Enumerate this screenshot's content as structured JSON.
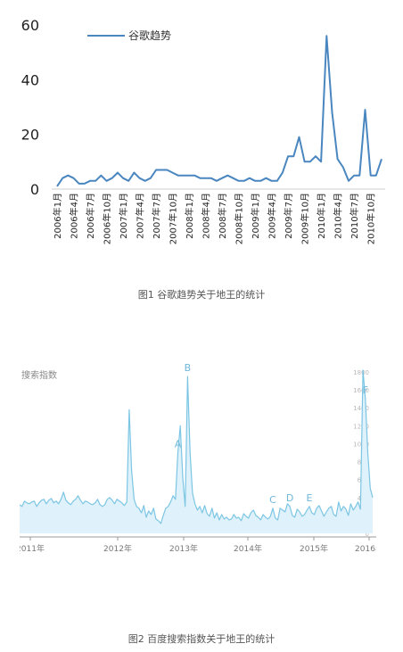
{
  "figure1": {
    "caption": "图1 谷歌趋势关于地王的统计",
    "legend": "谷歌趋势",
    "line_color": "#4a86bf"
  },
  "figure2": {
    "caption": "图2 百度搜索指数关于地王的统计",
    "line_color": "#7cc6e4",
    "fill_color": "#dff1fa"
  },
  "chart_data": [
    {
      "type": "line",
      "title": "",
      "xlabel": "",
      "ylabel": "",
      "ylim": [
        0,
        60
      ],
      "yticks": [
        0,
        20,
        40,
        60
      ],
      "grid": false,
      "legend_position": "top-left",
      "x_tick_labels": [
        "2006年1月",
        "2006年4月",
        "2006年7月",
        "2006年10月",
        "2007年1月",
        "2007年4月",
        "2007年7月",
        "2007年10月",
        "2008年1月",
        "2008年4月",
        "2008年7月",
        "2008年10月",
        "2009年1月",
        "2009年4月",
        "2009年7月",
        "2009年10月",
        "2010年1月",
        "2010年4月",
        "2010年7月",
        "2010年10月"
      ],
      "series": [
        {
          "name": "谷歌趋势",
          "values": [
            1,
            4,
            5,
            4,
            2,
            2,
            3,
            3,
            5,
            3,
            4,
            6,
            4,
            3,
            6,
            4,
            3,
            4,
            7,
            7,
            7,
            6,
            5,
            5,
            5,
            5,
            4,
            4,
            4,
            3,
            4,
            5,
            4,
            3,
            3,
            4,
            3,
            3,
            4,
            3,
            3,
            6,
            12,
            12,
            19,
            10,
            10,
            12,
            10,
            56,
            28,
            11,
            8,
            3,
            5,
            5,
            29,
            5,
            5,
            11
          ]
        }
      ]
    },
    {
      "type": "area",
      "title": "搜索指数",
      "x_tick_labels": [
        "2011年",
        "2012年",
        "2013年",
        "2014年",
        "2015年",
        "2016年"
      ],
      "y_tick_labels": [
        "0",
        "200",
        "400",
        "600",
        "800",
        "1000",
        "1200",
        "1400",
        "1600",
        "1800"
      ],
      "annotations": [
        "A",
        "B",
        "C",
        "D",
        "E",
        "F"
      ],
      "series": [
        {
          "values": [
            320,
            300,
            360,
            340,
            330,
            350,
            360,
            300,
            340,
            370,
            380,
            330,
            370,
            390,
            340,
            360,
            330,
            380,
            460,
            370,
            340,
            320,
            360,
            380,
            420,
            370,
            330,
            360,
            350,
            330,
            320,
            340,
            380,
            320,
            300,
            320,
            380,
            400,
            370,
            330,
            380,
            360,
            340,
            310,
            350,
            1380,
            700,
            380,
            300,
            280,
            230,
            310,
            180,
            250,
            210,
            280,
            160,
            140,
            110,
            200,
            280,
            300,
            350,
            420,
            380,
            900,
            1200,
            620,
            300,
            1750,
            900,
            450,
            330,
            260,
            300,
            230,
            310,
            220,
            190,
            280,
            170,
            230,
            150,
            210,
            160,
            180,
            150,
            160,
            210,
            170,
            180,
            140,
            220,
            190,
            170,
            230,
            260,
            200,
            180,
            150,
            210,
            180,
            160,
            190,
            280,
            170,
            150,
            280,
            260,
            240,
            330,
            300,
            200,
            180,
            270,
            240,
            190,
            210,
            260,
            300,
            230,
            210,
            280,
            310,
            250,
            190,
            240,
            280,
            300,
            210,
            190,
            350,
            250,
            300,
            270,
            200,
            330,
            260,
            300,
            350,
            270,
            1820,
            1500,
            900,
            500,
            400
          ]
        }
      ]
    }
  ]
}
